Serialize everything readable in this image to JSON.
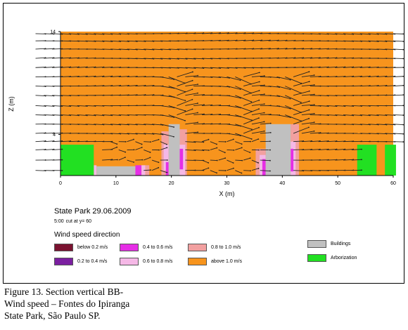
{
  "chart_data": {
    "type": "vector-field",
    "xlabel": "X (m)",
    "ylabel": "Z (m)",
    "xlim": [
      0,
      60
    ],
    "ylim": [
      0,
      14
    ],
    "x_ticks": [
      "0",
      "10",
      "20",
      "30",
      "40",
      "50",
      "60"
    ],
    "y_ticks": [
      "4",
      "14"
    ],
    "background_class": "above 1.0 m/s",
    "vector_rows_z": [
      0.5,
      1.5,
      2.5,
      3.3,
      4.1,
      5.0,
      5.9,
      6.8,
      7.8,
      8.7,
      9.6,
      10.5,
      11.4,
      12.3,
      13.1,
      13.8
    ],
    "vector_columns_x": [
      -4.5,
      -3,
      -1.5,
      0,
      1.5,
      3,
      4.5,
      6,
      7.5,
      9,
      10.5,
      12,
      13.5,
      15,
      16.5,
      18,
      19.5,
      21,
      22.5,
      24,
      25.5,
      27,
      28.5,
      30,
      31.5,
      33,
      34.5,
      36,
      37.5,
      39,
      40.5,
      42,
      43.5,
      45,
      46.5,
      48,
      49.5,
      51,
      52.5,
      54,
      55.5,
      57,
      58.5,
      60
    ],
    "vector_length_m": 1.8,
    "wave_features_x": [
      20,
      32,
      41
    ],
    "buildings": [
      {
        "x0": 6.5,
        "x1": 13.5,
        "z0": 0,
        "z1": 0.9
      },
      {
        "x0": 19.5,
        "x1": 21.5,
        "z0": 0,
        "z1": 5.0
      },
      {
        "x0": 37.0,
        "x1": 41.5,
        "z0": 0,
        "z1": 5.0
      }
    ],
    "arborization": [
      {
        "x0": 0,
        "x1": 6.0,
        "z0": 0,
        "z1": 3.0
      },
      {
        "x0": 53.5,
        "x1": 57.0,
        "z0": 0,
        "z1": 3.0
      },
      {
        "x0": 58.5,
        "x1": 60.5,
        "z0": 0,
        "z1": 3.0
      }
    ],
    "speed_regions": [
      {
        "class": "0.4 to 0.6 m/s",
        "x0": 13.5,
        "x1": 14.6,
        "z0": 0,
        "z1": 1.0
      },
      {
        "class": "0.6 to 0.8 m/s",
        "x0": 6.0,
        "x1": 6.5,
        "z0": 0,
        "z1": 1.0
      },
      {
        "class": "0.6 to 0.8 m/s",
        "x0": 14.6,
        "x1": 15.3,
        "z0": 0,
        "z1": 1.0
      },
      {
        "class": "0.8 to 1.0 m/s",
        "x0": 15.3,
        "x1": 16.0,
        "z0": 0,
        "z1": 1.0
      },
      {
        "class": "0.8 to 1.0 m/s",
        "x0": 18.2,
        "x1": 19.5,
        "z0": 0,
        "z1": 4.3
      },
      {
        "class": "0.6 to 0.8 m/s",
        "x0": 18.6,
        "x1": 19.5,
        "z0": 0.5,
        "z1": 3.0
      },
      {
        "class": "0.4 to 0.6 m/s",
        "x0": 19.0,
        "x1": 19.5,
        "z0": 0,
        "z1": 1.3
      },
      {
        "class": "0.8 to 1.0 m/s",
        "x0": 21.5,
        "x1": 22.8,
        "z0": 0,
        "z1": 4.5
      },
      {
        "class": "0.6 to 0.8 m/s",
        "x0": 21.5,
        "x1": 22.5,
        "z0": 0,
        "z1": 3.0
      },
      {
        "class": "0.4 to 0.6 m/s",
        "x0": 21.5,
        "x1": 22.1,
        "z0": 0.6,
        "z1": 2.6
      },
      {
        "class": "0.8 to 1.0 m/s",
        "x0": 35.2,
        "x1": 37.0,
        "z0": 0,
        "z1": 2.6
      },
      {
        "class": "0.6 to 0.8 m/s",
        "x0": 35.9,
        "x1": 37.0,
        "z0": 0,
        "z1": 2.0
      },
      {
        "class": "0.4 to 0.6 m/s",
        "x0": 36.4,
        "x1": 37.0,
        "z0": 0,
        "z1": 1.6
      },
      {
        "class": "0.8 to 1.0 m/s",
        "x0": 41.5,
        "x1": 43.0,
        "z0": 0,
        "z1": 5.0
      },
      {
        "class": "0.6 to 0.8 m/s",
        "x0": 41.5,
        "x1": 42.4,
        "z0": 0,
        "z1": 3.3
      },
      {
        "class": "0.4 to 0.6 m/s",
        "x0": 41.5,
        "x1": 42.0,
        "z0": 0.4,
        "z1": 2.6
      }
    ]
  },
  "info": {
    "title": "State Park 29.06.2009",
    "time": "5:00",
    "cut": "cut at y= 60"
  },
  "legend": {
    "title": "Wind speed direction",
    "items": [
      {
        "label": "below 0.2 m/s",
        "color": "#7a1230"
      },
      {
        "label": "0.2 to 0.4 m/s",
        "color": "#7b1fa0"
      },
      {
        "label": "0.4 to 0.6 m/s",
        "color": "#e62ee6"
      },
      {
        "label": "0.6 to 0.8 m/s",
        "color": "#f5b8e6"
      },
      {
        "label": "0.8 to 1.0 m/s",
        "color": "#f2a0a0"
      },
      {
        "label": "above 1.0 m/s",
        "color": "#f7941d"
      },
      {
        "label": "Buildings",
        "color": "#c0c0c0"
      },
      {
        "label": "Arborization",
        "color": "#22e022"
      }
    ]
  },
  "caption": {
    "line1": "Figure 13. Section vertical BB-",
    "line2": "Wind speed – Fontes do Ipiranga",
    "line3": "State Park, São Paulo SP."
  }
}
